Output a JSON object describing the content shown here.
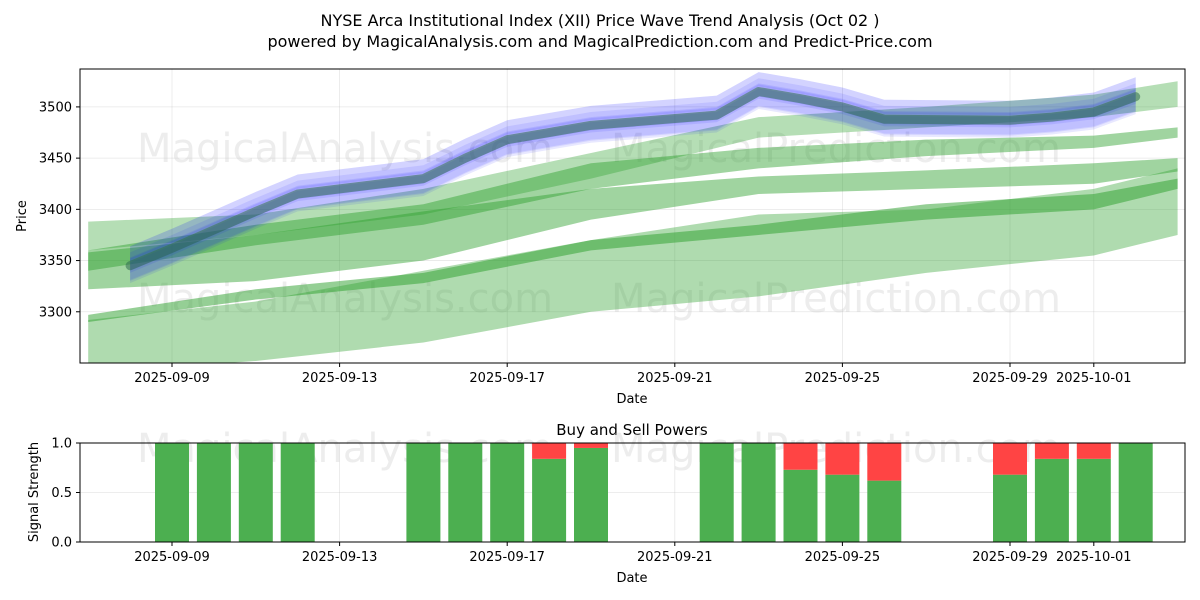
{
  "title_line1": "NYSE Arca Institutional Index (XII) Price Wave Trend Analysis (Oct 02 )",
  "title_line2": "powered by MagicalAnalysis.com and MagicalPrediction.com and Predict-Price.com",
  "watermarks": [
    "MagicalAnalysis.com",
    "MagicalPrediction.com"
  ],
  "colors": {
    "history_band": "#0000ff",
    "history_line": "#2e6b4f",
    "forecast_band": "#2ca02c",
    "buy": "#4caf50",
    "sell": "#ff4444"
  },
  "chart_data": [
    {
      "type": "area",
      "title": "Price Wave Trend Analysis",
      "xlabel": "Date",
      "ylabel": "Price",
      "ylim": [
        3250,
        3537
      ],
      "x_ticks": [
        "2025-09-09",
        "2025-09-13",
        "2025-09-17",
        "2025-09-21",
        "2025-09-25",
        "2025-09-29",
        "2025-10-01"
      ],
      "y_ticks": [
        3300,
        3350,
        3400,
        3450,
        3500
      ],
      "history": {
        "dates": [
          "2025-09-08",
          "2025-09-09",
          "2025-09-10",
          "2025-09-11",
          "2025-09-12",
          "2025-09-15",
          "2025-09-16",
          "2025-09-17",
          "2025-09-18",
          "2025-09-19",
          "2025-09-22",
          "2025-09-23",
          "2025-09-24",
          "2025-09-25",
          "2025-09-26",
          "2025-09-29",
          "2025-09-30",
          "2025-10-01",
          "2025-10-02"
        ],
        "values": [
          3345,
          3362,
          3380,
          3398,
          3415,
          3430,
          3450,
          3468,
          3475,
          3482,
          3492,
          3515,
          3508,
          3500,
          3488,
          3487,
          3490,
          3495,
          3510
        ]
      },
      "forecast_bands": [
        {
          "name": "upper",
          "dates": [
            "2025-09-07",
            "2025-09-11",
            "2025-09-15",
            "2025-09-19",
            "2025-09-23",
            "2025-09-27",
            "2025-10-01",
            "2025-10-03"
          ],
          "low": [
            3360,
            3375,
            3395,
            3430,
            3470,
            3480,
            3490,
            3500
          ],
          "high": [
            3388,
            3395,
            3420,
            3455,
            3490,
            3500,
            3512,
            3525
          ]
        },
        {
          "name": "upper-mid",
          "dates": [
            "2025-09-07",
            "2025-09-11",
            "2025-09-15",
            "2025-09-19",
            "2025-09-23",
            "2025-09-27",
            "2025-10-01",
            "2025-10-03"
          ],
          "low": [
            3340,
            3365,
            3385,
            3420,
            3440,
            3452,
            3460,
            3470
          ],
          "high": [
            3360,
            3385,
            3405,
            3445,
            3460,
            3468,
            3472,
            3480
          ]
        },
        {
          "name": "middle",
          "dates": [
            "2025-09-07",
            "2025-09-11",
            "2025-09-15",
            "2025-09-19",
            "2025-09-23",
            "2025-09-27",
            "2025-10-01",
            "2025-10-03"
          ],
          "low": [
            3322,
            3330,
            3350,
            3390,
            3415,
            3420,
            3425,
            3437
          ],
          "high": [
            3358,
            3375,
            3398,
            3420,
            3432,
            3438,
            3445,
            3450
          ]
        },
        {
          "name": "lower",
          "dates": [
            "2025-09-07",
            "2025-09-11",
            "2025-09-15",
            "2025-09-19",
            "2025-09-23",
            "2025-09-27",
            "2025-10-01",
            "2025-10-03"
          ],
          "low": [
            3290,
            3312,
            3328,
            3360,
            3375,
            3390,
            3400,
            3420
          ],
          "high": [
            3297,
            3322,
            3338,
            3370,
            3385,
            3405,
            3415,
            3430
          ]
        },
        {
          "name": "wide",
          "dates": [
            "2025-09-07",
            "2025-09-11",
            "2025-09-15",
            "2025-09-19",
            "2025-09-23",
            "2025-09-27",
            "2025-10-01",
            "2025-10-03"
          ],
          "low": [
            3240,
            3252,
            3270,
            3300,
            3315,
            3338,
            3355,
            3375
          ],
          "high": [
            3292,
            3310,
            3340,
            3370,
            3395,
            3400,
            3420,
            3440
          ]
        }
      ]
    },
    {
      "type": "bar",
      "title": "Buy and Sell Powers",
      "xlabel": "Date",
      "ylabel": "Signal Strength",
      "ylim": [
        0,
        1
      ],
      "x_ticks": [
        "2025-09-09",
        "2025-09-13",
        "2025-09-17",
        "2025-09-21",
        "2025-09-25",
        "2025-09-29",
        "2025-10-01"
      ],
      "y_ticks": [
        "0.0",
        "0.5",
        "1.0"
      ],
      "categories": [
        "2025-09-09",
        "2025-09-10",
        "2025-09-11",
        "2025-09-12",
        "2025-09-15",
        "2025-09-16",
        "2025-09-17",
        "2025-09-18",
        "2025-09-19",
        "2025-09-22",
        "2025-09-23",
        "2025-09-24",
        "2025-09-25",
        "2025-09-26",
        "2025-09-29",
        "2025-09-30",
        "2025-10-01",
        "2025-10-02"
      ],
      "series": [
        {
          "name": "Buy",
          "values": [
            1.0,
            1.0,
            1.0,
            1.0,
            1.0,
            1.0,
            1.0,
            0.84,
            0.95,
            1.0,
            1.0,
            0.73,
            0.68,
            0.62,
            0.68,
            0.84,
            0.84,
            1.0
          ]
        },
        {
          "name": "Sell",
          "values": [
            0.0,
            0.0,
            0.0,
            0.0,
            0.0,
            0.0,
            0.0,
            0.16,
            0.05,
            0.0,
            0.0,
            0.27,
            0.32,
            0.38,
            0.32,
            0.16,
            0.16,
            0.0
          ]
        }
      ]
    }
  ]
}
